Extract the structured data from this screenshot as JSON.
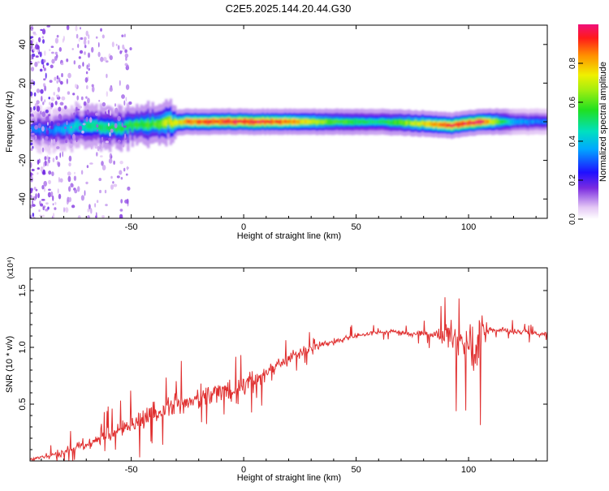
{
  "figure": {
    "title": "C2E5.2025.144.20.44.G30"
  },
  "chart_data": [
    {
      "type": "heatmap",
      "title": "C2E5.2025.144.20.44.G30",
      "xlabel": "Height of straight line (km)",
      "ylabel": "Frequency (Hz)",
      "xlim": [
        -95,
        135
      ],
      "ylim": [
        -50,
        50
      ],
      "xticks": [
        -50,
        0,
        50,
        100
      ],
      "yticks": [
        -40,
        -20,
        0,
        20,
        40
      ],
      "colorbar": {
        "label": "Normalized spectral amplitude",
        "range": [
          0,
          1
        ],
        "ticks": [
          "0.0",
          "0.2",
          "0.4",
          "0.6",
          "0.8"
        ]
      },
      "ridge": {
        "description_points": [
          {
            "x": -85,
            "f": -4,
            "amp": 0.3
          },
          {
            "x": -70,
            "f": -2,
            "amp": 0.45
          },
          {
            "x": -55,
            "f": -3,
            "amp": 0.5
          },
          {
            "x": -40,
            "f": -1,
            "amp": 0.55
          },
          {
            "x": -25,
            "f": 0,
            "amp": 0.8
          },
          {
            "x": -10,
            "f": 0,
            "amp": 0.85
          },
          {
            "x": 5,
            "f": 0,
            "amp": 0.9
          },
          {
            "x": 20,
            "f": 0,
            "amp": 0.8
          },
          {
            "x": 40,
            "f": 0,
            "amp": 0.55
          },
          {
            "x": 60,
            "f": 0,
            "amp": 0.45
          },
          {
            "x": 80,
            "f": -1,
            "amp": 0.7
          },
          {
            "x": 92,
            "f": -2,
            "amp": 0.85
          },
          {
            "x": 105,
            "f": 0,
            "amp": 0.9
          },
          {
            "x": 120,
            "f": 0,
            "amp": 0.35
          },
          {
            "x": 135,
            "f": 0,
            "amp": 0.3
          }
        ]
      }
    },
    {
      "type": "line",
      "xlabel": "Height of straight line (km)",
      "ylabel": "SNR (10 * v/v)",
      "yunit_label": "(x10⁴)",
      "xlim": [
        -95,
        135
      ],
      "ylim": [
        0,
        1.7
      ],
      "xticks": [
        -50,
        0,
        50,
        100
      ],
      "yticks": [
        "0.5",
        "1.0",
        "1.5"
      ],
      "color": "#e03030",
      "series": [
        {
          "x": [
            -95,
            -90,
            -85,
            -80,
            -75,
            -70,
            -65,
            -60,
            -55,
            -50,
            -45,
            -40,
            -35,
            -30,
            -25,
            -20,
            -15,
            -10,
            -5,
            0,
            5,
            10,
            15,
            20,
            25,
            30,
            35,
            40,
            45,
            50,
            55,
            60,
            65,
            70,
            75,
            80,
            85,
            90,
            95,
            100,
            103,
            105,
            110,
            115,
            120,
            125,
            130,
            135
          ],
          "values": [
            0.01,
            0.03,
            0.05,
            0.08,
            0.12,
            0.15,
            0.18,
            0.22,
            0.28,
            0.32,
            0.37,
            0.42,
            0.45,
            0.5,
            0.52,
            0.55,
            0.58,
            0.62,
            0.6,
            0.68,
            0.7,
            0.78,
            0.85,
            0.9,
            0.95,
            1.0,
            1.02,
            1.05,
            1.08,
            1.1,
            1.12,
            1.13,
            1.14,
            1.13,
            1.12,
            1.12,
            1.11,
            1.12,
            1.05,
            1.0,
            0.9,
            1.1,
            1.15,
            1.15,
            1.14,
            1.13,
            1.12,
            1.12
          ]
        }
      ],
      "noise_profile": [
        {
          "x": -95,
          "amp": 0.02
        },
        {
          "x": -60,
          "amp": 0.12
        },
        {
          "x": -30,
          "amp": 0.18
        },
        {
          "x": 0,
          "amp": 0.15
        },
        {
          "x": 30,
          "amp": 0.06
        },
        {
          "x": 60,
          "amp": 0.03
        },
        {
          "x": 85,
          "amp": 0.05
        },
        {
          "x": 95,
          "amp": 0.35
        },
        {
          "x": 105,
          "amp": 0.4
        },
        {
          "x": 110,
          "amp": 0.05
        },
        {
          "x": 135,
          "amp": 0.03
        }
      ]
    }
  ]
}
